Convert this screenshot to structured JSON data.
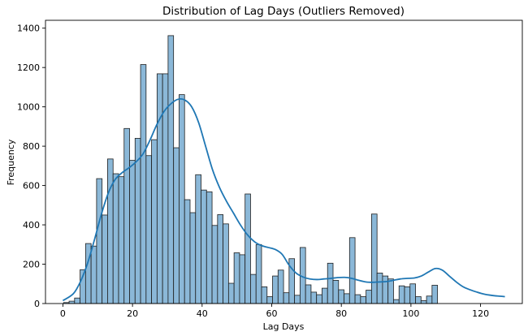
{
  "chart_data": {
    "type": "bar",
    "title": "Distribution of Lag Days (Outliers Removed)",
    "xlabel": "Lag Days",
    "ylabel": "Frequency",
    "xlim": [
      -5,
      132
    ],
    "ylim": [
      0,
      1440
    ],
    "xticks": [
      0,
      20,
      40,
      60,
      80,
      100,
      120
    ],
    "yticks": [
      0,
      200,
      400,
      600,
      800,
      1000,
      1200,
      1400
    ],
    "grid": false,
    "bin_width": 1.58,
    "bin_start": 0.2,
    "values": [
      5,
      12,
      28,
      172,
      305,
      292,
      635,
      450,
      735,
      660,
      645,
      890,
      728,
      840,
      1215,
      752,
      833,
      1168,
      1168,
      1362,
      792,
      1062,
      528,
      462,
      655,
      577,
      568,
      397,
      452,
      405,
      103,
      258,
      248,
      557,
      148,
      300,
      85,
      35,
      140,
      170,
      55,
      228,
      42,
      285,
      95,
      58,
      45,
      78,
      205,
      118,
      70,
      50,
      335,
      45,
      35,
      68,
      455,
      155,
      140,
      125,
      20,
      90,
      85,
      100,
      35,
      15,
      38,
      93
    ],
    "kde": {
      "x": [
        0,
        3,
        5,
        7,
        9,
        11,
        13,
        15,
        17,
        19,
        21,
        23,
        25,
        27,
        29,
        31,
        33,
        35,
        37,
        39,
        41,
        43,
        45,
        47,
        49,
        51,
        53,
        55,
        57,
        59,
        61,
        63,
        65,
        67,
        69,
        71,
        73,
        75,
        77,
        79,
        81,
        83,
        85,
        87,
        89,
        91,
        93,
        95,
        97,
        99,
        101,
        103,
        105,
        107,
        109,
        111,
        113,
        115,
        117,
        119,
        121,
        123,
        125,
        127
      ],
      "y": [
        15,
        50,
        110,
        200,
        320,
        450,
        560,
        630,
        665,
        690,
        720,
        760,
        830,
        910,
        975,
        1015,
        1038,
        1035,
        1000,
        920,
        800,
        680,
        590,
        520,
        460,
        400,
        350,
        315,
        295,
        285,
        275,
        250,
        195,
        155,
        135,
        125,
        122,
        125,
        128,
        132,
        133,
        128,
        118,
        110,
        108,
        110,
        112,
        118,
        125,
        128,
        130,
        140,
        160,
        178,
        170,
        140,
        110,
        85,
        70,
        58,
        48,
        42,
        38,
        35
      ]
    },
    "colors": {
      "bar_fill": "#8bb8d8",
      "bar_edge": "#1f1f1f",
      "kde_line": "#1f77b4"
    }
  }
}
